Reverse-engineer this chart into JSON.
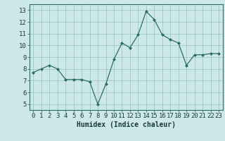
{
  "x": [
    0,
    1,
    2,
    3,
    4,
    5,
    6,
    7,
    8,
    9,
    10,
    11,
    12,
    13,
    14,
    15,
    16,
    17,
    18,
    19,
    20,
    21,
    22,
    23
  ],
  "y": [
    7.7,
    8.0,
    8.3,
    8.0,
    7.1,
    7.1,
    7.1,
    6.9,
    5.0,
    6.7,
    8.8,
    10.2,
    9.8,
    10.9,
    12.9,
    12.2,
    10.9,
    10.5,
    10.2,
    8.3,
    9.2,
    9.2,
    9.3,
    9.3
  ],
  "xlabel": "Humidex (Indice chaleur)",
  "xlim": [
    -0.5,
    23.5
  ],
  "ylim": [
    4.5,
    13.5
  ],
  "yticks": [
    5,
    6,
    7,
    8,
    9,
    10,
    11,
    12,
    13
  ],
  "xticks": [
    0,
    1,
    2,
    3,
    4,
    5,
    6,
    7,
    8,
    9,
    10,
    11,
    12,
    13,
    14,
    15,
    16,
    17,
    18,
    19,
    20,
    21,
    22,
    23
  ],
  "bg_color": "#cde8e8",
  "line_color": "#2d6e65",
  "marker_color": "#2d6e65",
  "grid_color": "#9ec8c8",
  "axis_color": "#2d6e65",
  "font_color": "#1a3a3a",
  "xlabel_fontsize": 7,
  "tick_fontsize": 6.5
}
